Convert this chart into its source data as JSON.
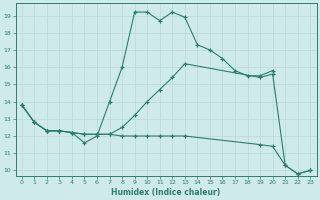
{
  "xlabel": "Humidex (Indice chaleur)",
  "background_color": "#ceeaea",
  "line_color": "#2d7d6e",
  "grid_color": "#b8d8d8",
  "xlim": [
    -0.5,
    23.5
  ],
  "ylim": [
    9.7,
    19.7
  ],
  "yticks": [
    10,
    11,
    12,
    13,
    14,
    15,
    16,
    17,
    18,
    19
  ],
  "xticks": [
    0,
    1,
    2,
    3,
    4,
    5,
    6,
    7,
    8,
    9,
    10,
    11,
    12,
    13,
    14,
    15,
    16,
    17,
    18,
    19,
    20,
    21,
    22,
    23
  ],
  "line1_x": [
    0,
    1,
    2,
    3,
    4,
    5,
    6,
    7,
    8,
    9,
    10,
    11,
    12,
    13,
    14,
    15,
    16,
    17,
    18,
    19,
    20
  ],
  "line1_y": [
    13.8,
    12.8,
    12.3,
    12.3,
    12.2,
    11.6,
    12.0,
    14.0,
    16.0,
    19.2,
    19.2,
    18.7,
    19.2,
    18.9,
    17.3,
    17.0,
    16.5,
    15.8,
    15.5,
    15.5,
    15.8
  ],
  "line2_x": [
    0,
    1,
    2,
    3,
    4,
    5,
    6,
    7,
    8,
    9,
    10,
    11,
    12,
    13,
    19,
    20,
    21,
    22,
    23
  ],
  "line2_y": [
    13.8,
    12.8,
    12.3,
    12.3,
    12.2,
    12.1,
    12.1,
    12.1,
    12.5,
    13.2,
    14.0,
    14.7,
    15.4,
    16.2,
    15.4,
    15.6,
    10.3,
    9.8,
    10.0
  ],
  "line3_x": [
    0,
    1,
    2,
    3,
    4,
    5,
    6,
    7,
    8,
    9,
    10,
    11,
    12,
    13,
    19,
    20,
    21,
    22,
    23
  ],
  "line3_y": [
    13.8,
    12.8,
    12.3,
    12.3,
    12.2,
    12.1,
    12.1,
    12.1,
    12.0,
    12.0,
    12.0,
    12.0,
    12.0,
    12.0,
    11.5,
    11.4,
    10.3,
    9.8,
    10.0
  ]
}
